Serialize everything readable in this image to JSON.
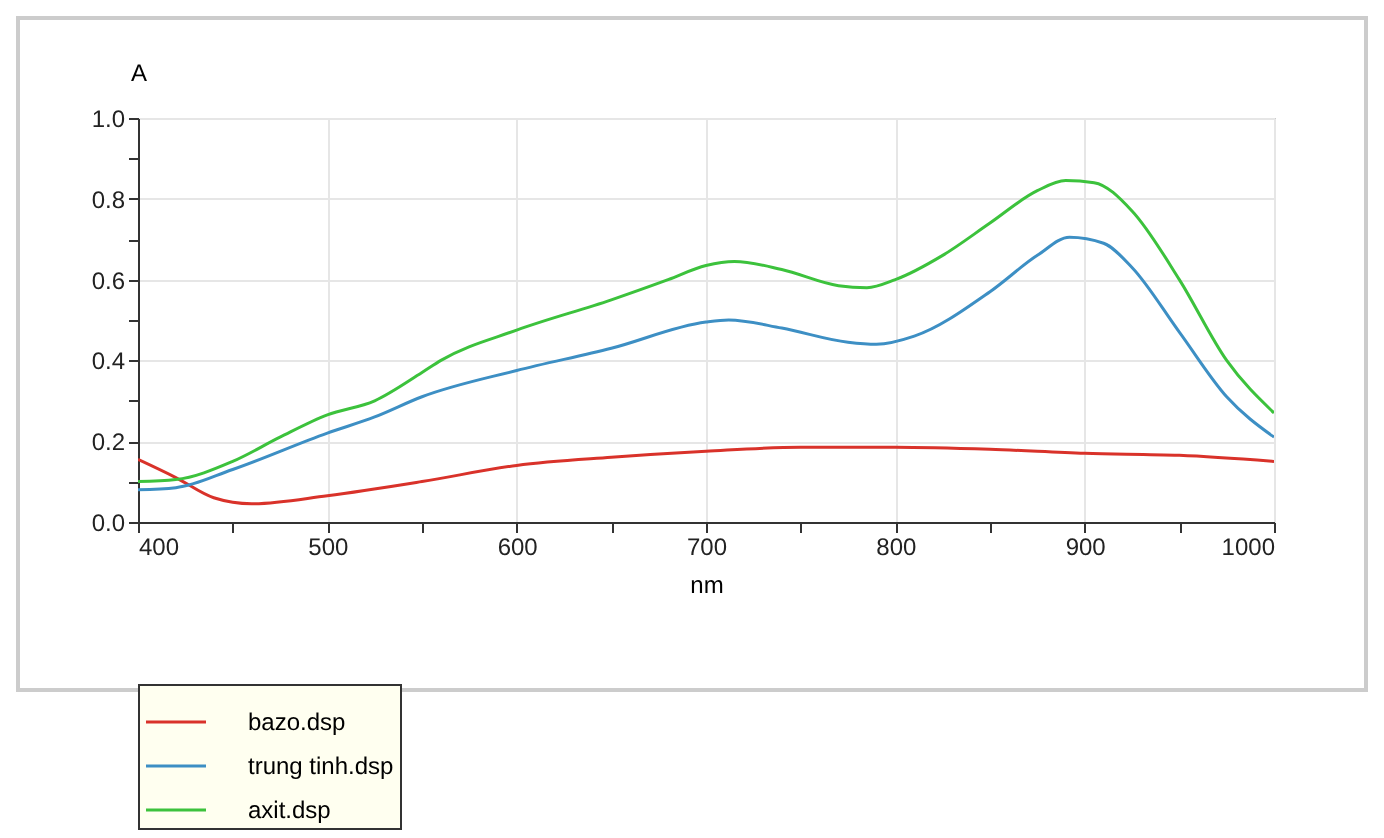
{
  "chart_data": {
    "type": "line",
    "xlabel": "nm",
    "ylabel": "A",
    "xlim": [
      400,
      1000
    ],
    "ylim": [
      0,
      1.0
    ],
    "xticks": [
      400,
      {
        "value": 450,
        "label": null
      },
      500,
      {
        "value": 550,
        "label": null
      },
      600,
      {
        "value": 650,
        "label": null
      },
      700,
      {
        "value": 750,
        "label": null
      },
      800,
      {
        "value": 850,
        "label": null
      },
      900,
      {
        "value": 950,
        "label": null
      },
      1000
    ],
    "yticks": [
      {
        "value": 0,
        "label": "0.0"
      },
      {
        "value": 0.1,
        "label": null
      },
      0.2,
      {
        "value": 0.3,
        "label": null
      },
      0.4,
      {
        "value": 0.5,
        "label": null
      },
      0.6,
      {
        "value": 0.7,
        "label": null
      },
      0.8,
      {
        "value": 0.9,
        "label": null
      },
      {
        "value": 1.0,
        "label": "1.0"
      }
    ],
    "grid": true,
    "legend": "bottom left",
    "series": [
      {
        "name": "bazo.dsp",
        "color": "#d9322a",
        "x": [
          400,
          420,
          440,
          460,
          500,
          550,
          600,
          650,
          700,
          750,
          800,
          850,
          900,
          950,
          1000
        ],
        "values": [
          0.155,
          0.11,
          0.06,
          0.045,
          0.065,
          0.1,
          0.14,
          0.16,
          0.175,
          0.185,
          0.185,
          0.18,
          0.17,
          0.165,
          0.15
        ]
      },
      {
        "name": "trung tinh.dsp",
        "color": "#3d8fc4",
        "x": [
          400,
          420,
          450,
          500,
          525,
          550,
          600,
          650,
          700,
          712,
          740,
          775,
          790,
          810,
          850,
          875,
          892,
          910,
          925,
          950,
          975,
          1000
        ],
        "values": [
          0.08,
          0.085,
          0.13,
          0.22,
          0.26,
          0.31,
          0.375,
          0.43,
          0.495,
          0.5,
          0.48,
          0.445,
          0.44,
          0.46,
          0.57,
          0.66,
          0.705,
          0.69,
          0.63,
          0.47,
          0.31,
          0.21
        ]
      },
      {
        "name": "axit.dsp",
        "color": "#3cc23c",
        "x": [
          400,
          420,
          450,
          475,
          500,
          525,
          550,
          560,
          600,
          650,
          680,
          700,
          715,
          740,
          770,
          785,
          800,
          825,
          850,
          875,
          890,
          905,
          925,
          950,
          975,
          1000
        ],
        "values": [
          0.1,
          0.105,
          0.15,
          0.21,
          0.265,
          0.3,
          0.37,
          0.4,
          0.475,
          0.55,
          0.6,
          0.635,
          0.645,
          0.625,
          0.585,
          0.58,
          0.6,
          0.66,
          0.74,
          0.82,
          0.845,
          0.84,
          0.77,
          0.6,
          0.4,
          0.27
        ]
      }
    ]
  }
}
